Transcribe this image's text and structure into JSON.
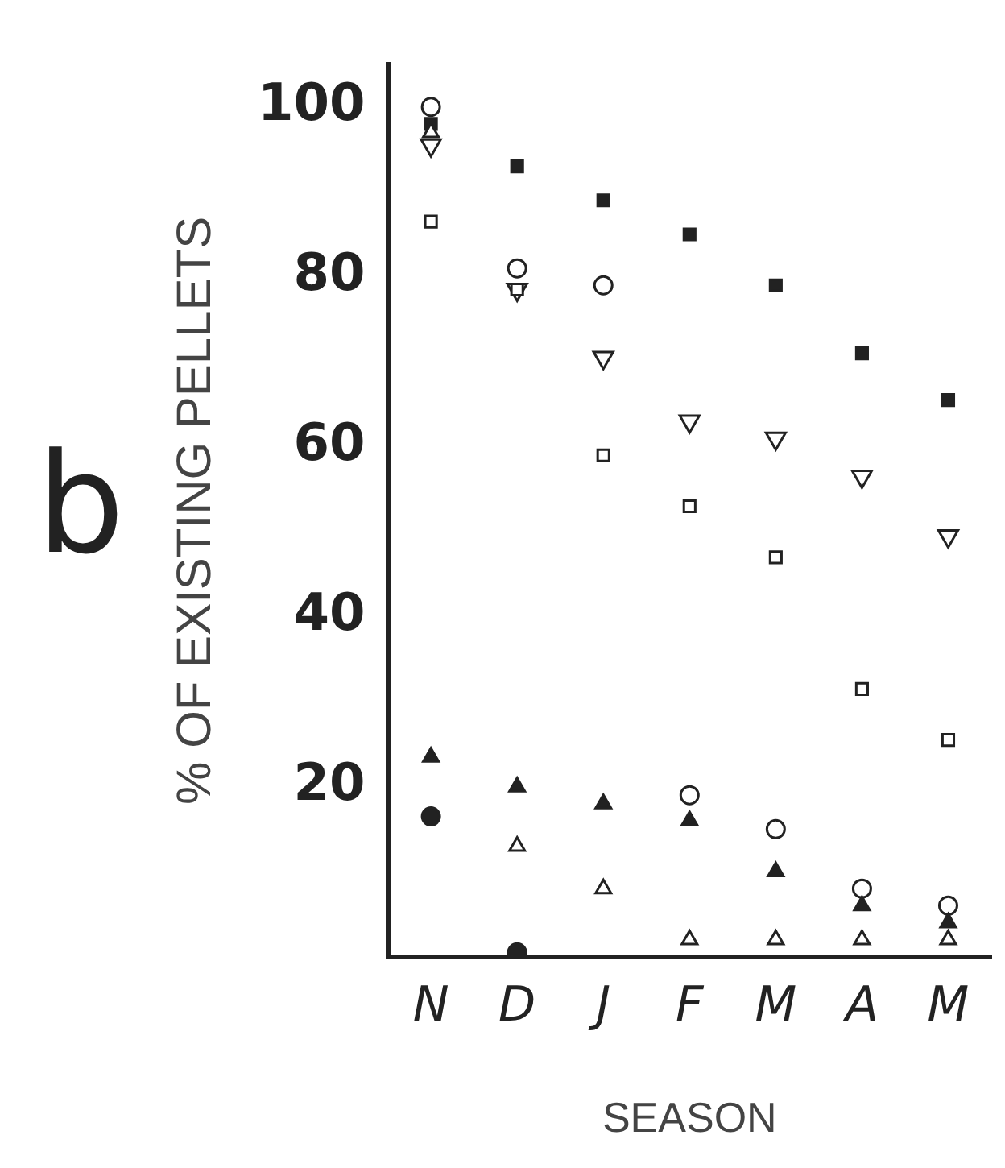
{
  "chart_data": {
    "type": "scatter",
    "xlabel": "SEASON",
    "ylabel": "% OF EXISTING PELLETS",
    "annotations": [
      "b"
    ],
    "categories": [
      "N",
      "D",
      "J",
      "F",
      "M",
      "A",
      "M"
    ],
    "ylim": [
      0,
      105
    ],
    "yticks": [
      20,
      40,
      60,
      80,
      100
    ],
    "grid": false,
    "legend": false,
    "series": [
      {
        "marker": "square",
        "color": "#222222",
        "values": [
          98,
          93,
          89,
          85,
          79,
          71,
          65.5
        ]
      },
      {
        "marker": "circle",
        "color": "#ffffff",
        "values": [
          100,
          81,
          79,
          19,
          15,
          8,
          6
        ]
      },
      {
        "marker": "triangle",
        "color": "#ffffff",
        "values": [
          97,
          13,
          8,
          2,
          2,
          2,
          2
        ]
      },
      {
        "marker": "triangle-down",
        "color": "#ffffff",
        "values": [
          95.5,
          78.5,
          70.5,
          63,
          61,
          56.5,
          49.5
        ]
      },
      {
        "marker": "square",
        "color": "#ffffff",
        "values": [
          86.5,
          78.5,
          59,
          53,
          47,
          31.5,
          25.5
        ]
      },
      {
        "marker": "triangle",
        "color": "#222222",
        "values": [
          23.5,
          20,
          18,
          16,
          10,
          6,
          4
        ]
      },
      {
        "marker": "circle",
        "color": "#222222",
        "values": [
          16.5,
          0.5,
          null,
          null,
          null,
          null,
          null
        ]
      }
    ]
  }
}
